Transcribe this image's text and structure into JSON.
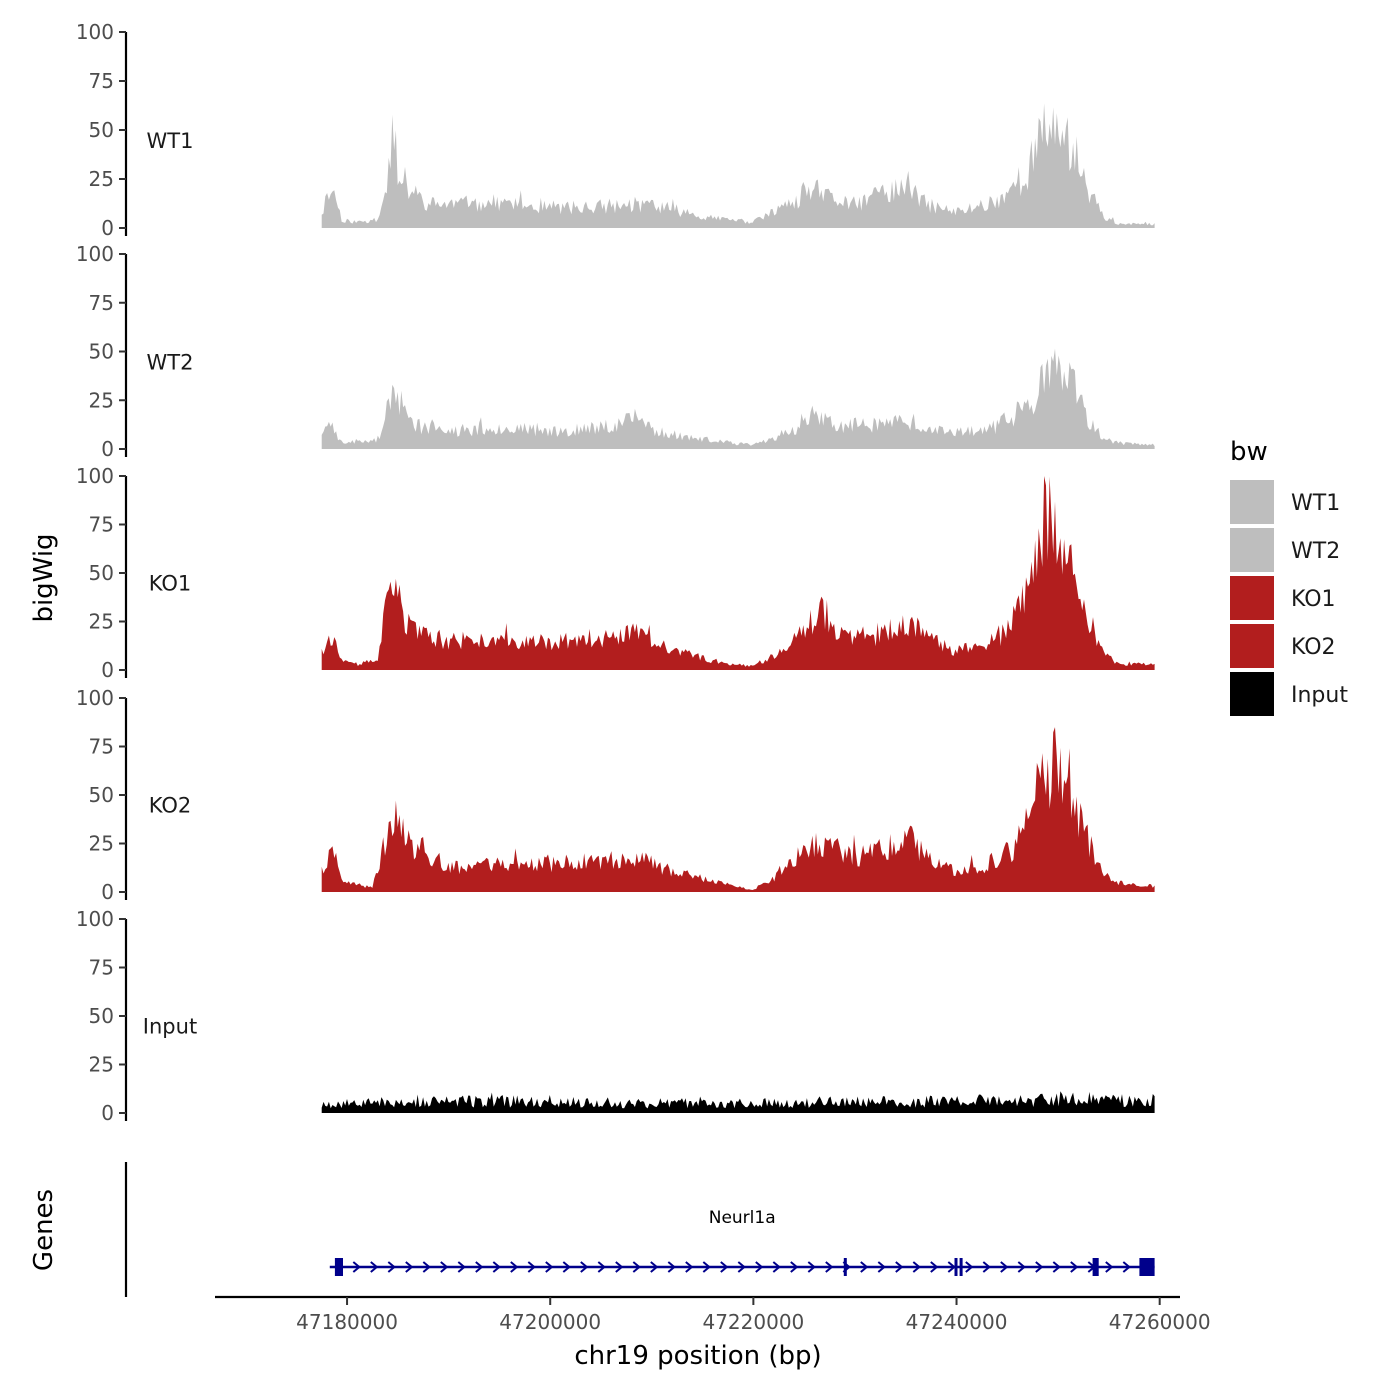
{
  "chart_data": {
    "type": "area",
    "chromosome": "chr19",
    "xlabel": "chr19 position (bp)",
    "ylabel": "bigWig",
    "genes_label": "Genes",
    "xlim": [
      47167000,
      47262000
    ],
    "x_ticks": [
      47180000,
      47200000,
      47220000,
      47240000,
      47260000
    ],
    "x_tick_labels": [
      "47180000",
      "47200000",
      "47220000",
      "47240000",
      "47260000"
    ],
    "ylim": [
      0,
      100
    ],
    "y_ticks": [
      0,
      25,
      50,
      75,
      100
    ],
    "y_tick_labels": [
      "0",
      "25",
      "50",
      "75",
      "100"
    ],
    "data_range": [
      47177500,
      47259500
    ],
    "legend": {
      "title": "bw",
      "entries": [
        {
          "label": "WT1",
          "color": "#bebebe"
        },
        {
          "label": "WT2",
          "color": "#bebebe"
        },
        {
          "label": "KO1",
          "color": "#b21e1e"
        },
        {
          "label": "KO2",
          "color": "#b21e1e"
        },
        {
          "label": "Input",
          "color": "#000000"
        }
      ]
    },
    "series": [
      {
        "name": "WT1",
        "color": "#bebebe",
        "seed": 11,
        "noise": 0.35,
        "profile": [
          [
            47177500,
            8
          ],
          [
            47178500,
            22
          ],
          [
            47179500,
            4
          ],
          [
            47181000,
            3
          ],
          [
            47183000,
            4
          ],
          [
            47183800,
            18
          ],
          [
            47184500,
            50
          ],
          [
            47185200,
            25
          ],
          [
            47186500,
            18
          ],
          [
            47188000,
            12
          ],
          [
            47195000,
            13
          ],
          [
            47200000,
            10
          ],
          [
            47205000,
            11
          ],
          [
            47210000,
            12
          ],
          [
            47215000,
            6
          ],
          [
            47218000,
            4
          ],
          [
            47220000,
            3
          ],
          [
            47222000,
            8
          ],
          [
            47224000,
            12
          ],
          [
            47225500,
            20
          ],
          [
            47227500,
            15
          ],
          [
            47230000,
            12
          ],
          [
            47233000,
            18
          ],
          [
            47235000,
            22
          ],
          [
            47237000,
            12
          ],
          [
            47240000,
            8
          ],
          [
            47244000,
            14
          ],
          [
            47247000,
            28
          ],
          [
            47248500,
            48
          ],
          [
            47250000,
            54
          ],
          [
            47251500,
            40
          ],
          [
            47253000,
            20
          ],
          [
            47254500,
            6
          ],
          [
            47256000,
            2
          ],
          [
            47259500,
            2
          ]
        ]
      },
      {
        "name": "WT2",
        "color": "#bebebe",
        "seed": 23,
        "noise": 0.35,
        "profile": [
          [
            47177500,
            8
          ],
          [
            47178500,
            12
          ],
          [
            47179500,
            3
          ],
          [
            47181000,
            4
          ],
          [
            47183000,
            5
          ],
          [
            47184000,
            18
          ],
          [
            47184800,
            32
          ],
          [
            47185600,
            18
          ],
          [
            47187000,
            12
          ],
          [
            47190000,
            9
          ],
          [
            47195000,
            11
          ],
          [
            47200000,
            9
          ],
          [
            47205000,
            11
          ],
          [
            47208500,
            16
          ],
          [
            47210500,
            9
          ],
          [
            47215000,
            5
          ],
          [
            47218000,
            3
          ],
          [
            47220000,
            2
          ],
          [
            47222000,
            6
          ],
          [
            47224000,
            10
          ],
          [
            47226000,
            18
          ],
          [
            47228000,
            12
          ],
          [
            47230000,
            12
          ],
          [
            47234000,
            14
          ],
          [
            47237000,
            10
          ],
          [
            47240000,
            8
          ],
          [
            47244000,
            12
          ],
          [
            47247000,
            22
          ],
          [
            47248500,
            35
          ],
          [
            47250000,
            40
          ],
          [
            47251500,
            32
          ],
          [
            47253000,
            14
          ],
          [
            47254500,
            5
          ],
          [
            47256000,
            3
          ],
          [
            47259500,
            2
          ]
        ]
      },
      {
        "name": "KO1",
        "color": "#b21e1e",
        "seed": 37,
        "noise": 0.32,
        "profile": [
          [
            47177500,
            10
          ],
          [
            47178500,
            18
          ],
          [
            47179500,
            4
          ],
          [
            47181000,
            3
          ],
          [
            47183000,
            5
          ],
          [
            47183800,
            30
          ],
          [
            47184800,
            42
          ],
          [
            47185800,
            25
          ],
          [
            47187000,
            18
          ],
          [
            47190000,
            15
          ],
          [
            47195000,
            15
          ],
          [
            47200000,
            14
          ],
          [
            47205000,
            15
          ],
          [
            47208500,
            20
          ],
          [
            47211000,
            12
          ],
          [
            47215000,
            6
          ],
          [
            47218000,
            3
          ],
          [
            47220000,
            2
          ],
          [
            47222000,
            8
          ],
          [
            47224000,
            14
          ],
          [
            47225500,
            25
          ],
          [
            47226800,
            32
          ],
          [
            47228500,
            18
          ],
          [
            47231000,
            15
          ],
          [
            47234000,
            22
          ],
          [
            47235500,
            24
          ],
          [
            47237500,
            15
          ],
          [
            47240000,
            10
          ],
          [
            47243000,
            14
          ],
          [
            47245000,
            20
          ],
          [
            47246500,
            35
          ],
          [
            47248000,
            60
          ],
          [
            47249300,
            80
          ],
          [
            47250500,
            60
          ],
          [
            47252000,
            40
          ],
          [
            47253500,
            20
          ],
          [
            47254500,
            8
          ],
          [
            47256000,
            3
          ],
          [
            47259500,
            3
          ]
        ]
      },
      {
        "name": "KO2",
        "color": "#b21e1e",
        "seed": 41,
        "noise": 0.3,
        "profile": [
          [
            47177500,
            10
          ],
          [
            47178500,
            20
          ],
          [
            47179500,
            5
          ],
          [
            47181000,
            4
          ],
          [
            47182500,
            2
          ],
          [
            47183800,
            25
          ],
          [
            47184800,
            40
          ],
          [
            47186000,
            25
          ],
          [
            47188000,
            20
          ],
          [
            47190000,
            12
          ],
          [
            47195000,
            15
          ],
          [
            47200000,
            14
          ],
          [
            47205000,
            16
          ],
          [
            47208500,
            18
          ],
          [
            47211000,
            12
          ],
          [
            47215000,
            7
          ],
          [
            47218000,
            3
          ],
          [
            47220000,
            1
          ],
          [
            47222000,
            7
          ],
          [
            47224000,
            16
          ],
          [
            47225500,
            24
          ],
          [
            47228000,
            22
          ],
          [
            47230000,
            18
          ],
          [
            47234000,
            24
          ],
          [
            47235500,
            28
          ],
          [
            47237500,
            15
          ],
          [
            47240000,
            10
          ],
          [
            47243000,
            14
          ],
          [
            47245500,
            22
          ],
          [
            47247000,
            38
          ],
          [
            47248500,
            55
          ],
          [
            47249600,
            64
          ],
          [
            47251000,
            50
          ],
          [
            47252500,
            32
          ],
          [
            47254000,
            14
          ],
          [
            47255500,
            5
          ],
          [
            47259500,
            3
          ]
        ]
      },
      {
        "name": "Input",
        "color": "#000000",
        "seed": 53,
        "noise": 0.55,
        "profile": [
          [
            47177500,
            5
          ],
          [
            47190000,
            6
          ],
          [
            47200000,
            6
          ],
          [
            47210000,
            5
          ],
          [
            47220000,
            5
          ],
          [
            47230000,
            6
          ],
          [
            47240000,
            6
          ],
          [
            47250000,
            7
          ],
          [
            47259500,
            6
          ]
        ]
      }
    ],
    "gene": {
      "name": "Neurl1a",
      "color": "#00008b",
      "start": 47178300,
      "end": 47259500,
      "strand": "+",
      "exons": [
        [
          47178800,
          47179600
        ],
        [
          47228900,
          47229050
        ],
        [
          47239800,
          47240000
        ],
        [
          47240300,
          47240500
        ],
        [
          47253400,
          47254000
        ],
        [
          47258000,
          47259500
        ]
      ]
    }
  }
}
